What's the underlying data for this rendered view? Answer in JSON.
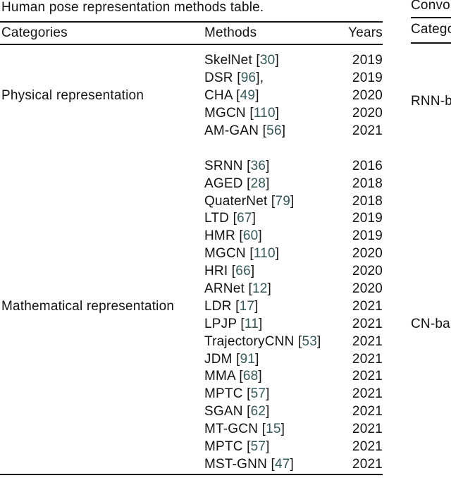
{
  "caption": "Human pose representation methods table.",
  "table": {
    "headers": {
      "categories": "Categories",
      "methods": "Methods",
      "years": "Years"
    },
    "groups": [
      {
        "category": "Physical representation",
        "rows": [
          {
            "method": "SkelNet",
            "cite": "30",
            "suffix": "",
            "year": "2019"
          },
          {
            "method": "DSR",
            "cite": "96",
            "suffix": ",",
            "year": "2019"
          },
          {
            "method": "CHA",
            "cite": "49",
            "suffix": "",
            "year": "2020"
          },
          {
            "method": "MGCN",
            "cite": "110",
            "suffix": "",
            "year": "2020"
          },
          {
            "method": "AM-GAN",
            "cite": "56",
            "suffix": "",
            "year": "2021"
          }
        ]
      },
      {
        "category": "Mathematical representation",
        "rows": [
          {
            "method": "SRNN",
            "cite": "36",
            "suffix": "",
            "year": "2016"
          },
          {
            "method": "AGED",
            "cite": "28",
            "suffix": "",
            "year": "2018"
          },
          {
            "method": "QuaterNet",
            "cite": "79",
            "suffix": "",
            "year": "2018"
          },
          {
            "method": "LTD",
            "cite": "67",
            "suffix": "",
            "year": "2019"
          },
          {
            "method": "HMR",
            "cite": "60",
            "suffix": "",
            "year": "2019"
          },
          {
            "method": "MGCN",
            "cite": "110",
            "suffix": "",
            "year": "2020"
          },
          {
            "method": "HRI",
            "cite": "66",
            "suffix": "",
            "year": "2020"
          },
          {
            "method": "ARNet",
            "cite": "12",
            "suffix": "",
            "year": "2020"
          },
          {
            "method": "LDR",
            "cite": "17",
            "suffix": "",
            "year": "2021"
          },
          {
            "method": "LPJP",
            "cite": "11",
            "suffix": "",
            "year": "2021"
          },
          {
            "method": "TrajectoryCNN",
            "cite": "53",
            "suffix": "",
            "year": "2021"
          },
          {
            "method": "JDM",
            "cite": "91",
            "suffix": "",
            "year": "2021"
          },
          {
            "method": "MMA",
            "cite": "68",
            "suffix": "",
            "year": "2021"
          },
          {
            "method": "MPTC",
            "cite": "57",
            "suffix": "",
            "year": "2021"
          },
          {
            "method": "SGAN",
            "cite": "62",
            "suffix": "",
            "year": "2021"
          },
          {
            "method": "MT-GCN",
            "cite": "15",
            "suffix": "",
            "year": "2021"
          },
          {
            "method": "MPTC",
            "cite": "57",
            "suffix": "",
            "year": "2021"
          },
          {
            "method": "MST-GNN",
            "cite": "47",
            "suffix": "",
            "year": "2021"
          }
        ]
      }
    ]
  },
  "side_table": {
    "caption_fragment": "Convo",
    "header_fragment": "Catego",
    "rows": [
      {
        "label": "RNN-b"
      },
      {
        "label": "CN-ba"
      }
    ]
  },
  "colors": {
    "text": "#141414",
    "citation": "#34585a",
    "rule": "#141414",
    "background": "#ffffff"
  }
}
